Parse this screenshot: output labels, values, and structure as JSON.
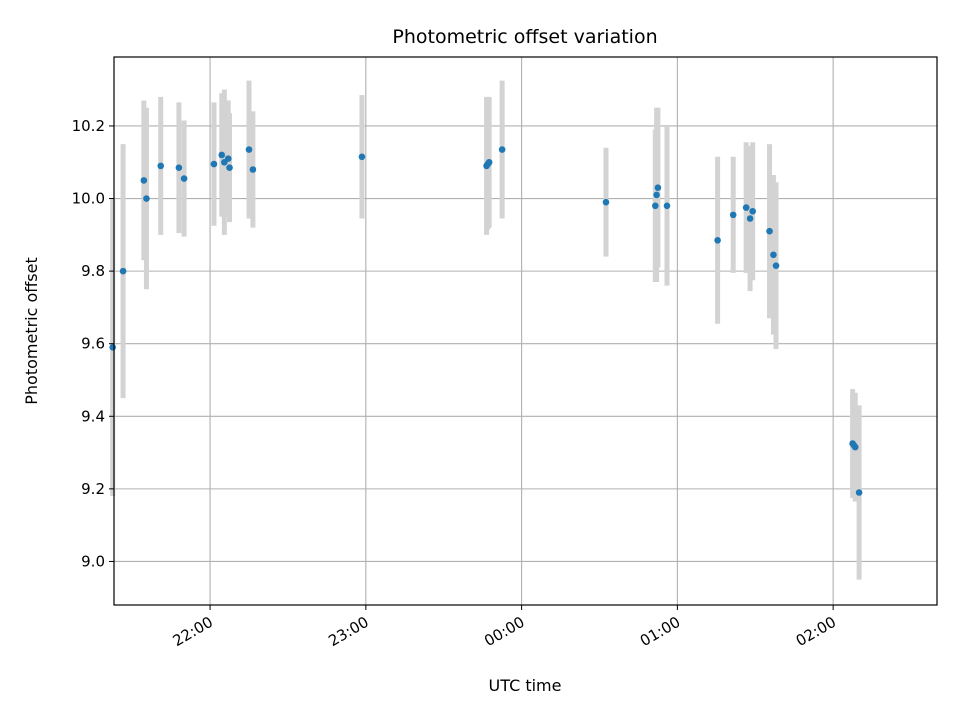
{
  "chart_data": {
    "type": "scatter",
    "title": "Photometric offset variation",
    "xlabel": "UTC time",
    "ylabel": "Photometric offset",
    "grid": true,
    "x_axis": {
      "kind": "time",
      "range": [
        "21:23",
        "02:40"
      ],
      "ticks": [
        "22:00",
        "23:00",
        "00:00",
        "01:00",
        "02:00"
      ],
      "tick_label_rotation_deg": 30
    },
    "y_axis": {
      "range": [
        8.88,
        10.39
      ],
      "ticks": [
        "9.0",
        "9.2",
        "9.4",
        "9.6",
        "9.8",
        "10.0",
        "10.2"
      ]
    },
    "colors": {
      "point": "#1f77b4",
      "errorbar": "#d3d3d3",
      "grid": "#b0b0b0",
      "axis": "#000000"
    },
    "points": [
      {
        "x": "21:22:30",
        "y": 9.59,
        "err": 0.41
      },
      {
        "x": "21:26:30",
        "y": 9.8,
        "err": 0.35
      },
      {
        "x": "21:34:30",
        "y": 10.05,
        "err": 0.22
      },
      {
        "x": "21:35:30",
        "y": 10.0,
        "err": 0.25
      },
      {
        "x": "21:41:00",
        "y": 10.09,
        "err": 0.19
      },
      {
        "x": "21:48:00",
        "y": 10.085,
        "err": 0.18
      },
      {
        "x": "21:50:00",
        "y": 10.055,
        "err": 0.16
      },
      {
        "x": "22:01:30",
        "y": 10.095,
        "err": 0.17
      },
      {
        "x": "22:04:30",
        "y": 10.12,
        "err": 0.17
      },
      {
        "x": "22:05:30",
        "y": 10.1,
        "err": 0.2
      },
      {
        "x": "22:07:00",
        "y": 10.11,
        "err": 0.16
      },
      {
        "x": "22:07:30",
        "y": 10.085,
        "err": 0.15
      },
      {
        "x": "22:15:00",
        "y": 10.135,
        "err": 0.19
      },
      {
        "x": "22:16:30",
        "y": 10.08,
        "err": 0.16
      },
      {
        "x": "22:58:30",
        "y": 10.115,
        "err": 0.17
      },
      {
        "x": "23:46:30",
        "y": 10.09,
        "err": 0.19
      },
      {
        "x": "23:47:00",
        "y": 10.095,
        "err": 0.18
      },
      {
        "x": "23:47:30",
        "y": 10.1,
        "err": 0.18
      },
      {
        "x": "23:52:30",
        "y": 10.135,
        "err": 0.19
      },
      {
        "x": "00:32:30",
        "y": 9.99,
        "err": 0.15
      },
      {
        "x": "00:51:30",
        "y": 9.98,
        "err": 0.21
      },
      {
        "x": "00:52:00",
        "y": 10.01,
        "err": 0.24
      },
      {
        "x": "00:52:30",
        "y": 10.03,
        "err": 0.22
      },
      {
        "x": "00:56:00",
        "y": 9.98,
        "err": 0.22
      },
      {
        "x": "01:15:30",
        "y": 9.885,
        "err": 0.23
      },
      {
        "x": "01:21:30",
        "y": 9.955,
        "err": 0.16
      },
      {
        "x": "01:26:30",
        "y": 9.975,
        "err": 0.18
      },
      {
        "x": "01:28:00",
        "y": 9.945,
        "err": 0.2
      },
      {
        "x": "01:29:00",
        "y": 9.965,
        "err": 0.19
      },
      {
        "x": "01:35:30",
        "y": 9.91,
        "err": 0.24
      },
      {
        "x": "01:37:00",
        "y": 9.845,
        "err": 0.22
      },
      {
        "x": "01:38:00",
        "y": 9.815,
        "err": 0.23
      },
      {
        "x": "02:07:30",
        "y": 9.325,
        "err": 0.15
      },
      {
        "x": "02:08:00",
        "y": 9.32,
        "err": 0.14
      },
      {
        "x": "02:08:30",
        "y": 9.315,
        "err": 0.15
      },
      {
        "x": "02:10:00",
        "y": 9.19,
        "err": 0.24
      }
    ]
  }
}
